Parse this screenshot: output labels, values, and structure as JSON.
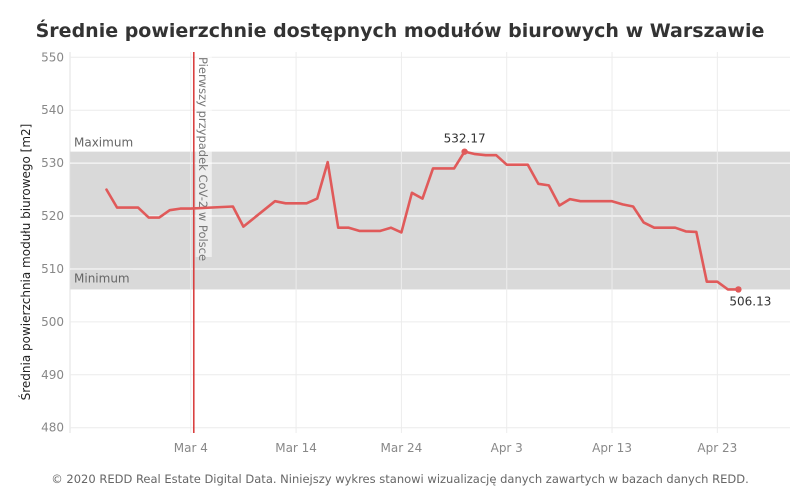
{
  "chart_data": {
    "type": "line",
    "title": "Średnie powierzchnie dostępnych modułów biurowych w Warszawie",
    "xlabel": "",
    "ylabel": "Średnia powierzchnia modułu biurowego [m2]",
    "x_tick_labels": [
      "Mar 4",
      "Mar 14",
      "Mar 24",
      "Apr 3",
      "Apr 13",
      "Apr 23"
    ],
    "y_ticks": [
      480,
      490,
      500,
      510,
      520,
      530,
      540,
      550
    ],
    "ylim": [
      479,
      551
    ],
    "grid": true,
    "band": {
      "min": 506.13,
      "max": 532.17,
      "min_label": "Minimum",
      "max_label": "Maximum"
    },
    "event": {
      "date": "2020-03-04",
      "label": "Pierwszy przypadek CoV-2 w Polsce"
    },
    "series": [
      {
        "color": "#e05a5a",
        "points": [
          [
            "2020-02-25",
            525.0
          ],
          [
            "2020-02-26",
            521.6
          ],
          [
            "2020-02-27",
            521.6
          ],
          [
            "2020-02-28",
            521.6
          ],
          [
            "2020-02-29",
            519.7
          ],
          [
            "2020-03-01",
            519.7
          ],
          [
            "2020-03-02",
            521.1
          ],
          [
            "2020-03-03",
            521.4
          ],
          [
            "2020-03-04",
            521.4
          ],
          [
            "2020-03-07",
            521.7
          ],
          [
            "2020-03-08",
            521.8
          ],
          [
            "2020-03-09",
            518.0
          ],
          [
            "2020-03-12",
            522.8
          ],
          [
            "2020-03-13",
            522.4
          ],
          [
            "2020-03-15",
            522.4
          ],
          [
            "2020-03-16",
            523.3
          ],
          [
            "2020-03-17",
            530.2
          ],
          [
            "2020-03-18",
            517.8
          ],
          [
            "2020-03-19",
            517.8
          ],
          [
            "2020-03-20",
            517.2
          ],
          [
            "2020-03-22",
            517.2
          ],
          [
            "2020-03-23",
            517.8
          ],
          [
            "2020-03-24",
            516.9
          ],
          [
            "2020-03-25",
            524.4
          ],
          [
            "2020-03-26",
            523.3
          ],
          [
            "2020-03-27",
            529.0
          ],
          [
            "2020-03-29",
            529.0
          ],
          [
            "2020-03-30",
            532.17
          ],
          [
            "2020-03-31",
            531.7
          ],
          [
            "2020-04-01",
            531.5
          ],
          [
            "2020-04-02",
            531.5
          ],
          [
            "2020-04-03",
            529.7
          ],
          [
            "2020-04-05",
            529.7
          ],
          [
            "2020-04-06",
            526.1
          ],
          [
            "2020-04-07",
            525.8
          ],
          [
            "2020-04-08",
            522.0
          ],
          [
            "2020-04-09",
            523.2
          ],
          [
            "2020-04-10",
            522.8
          ],
          [
            "2020-04-13",
            522.8
          ],
          [
            "2020-04-14",
            522.2
          ],
          [
            "2020-04-15",
            521.8
          ],
          [
            "2020-04-16",
            518.8
          ],
          [
            "2020-04-17",
            517.8
          ],
          [
            "2020-04-19",
            517.8
          ],
          [
            "2020-04-20",
            517.1
          ],
          [
            "2020-04-21",
            517.0
          ],
          [
            "2020-04-22",
            507.6
          ],
          [
            "2020-04-23",
            507.6
          ],
          [
            "2020-04-24",
            506.13
          ],
          [
            "2020-04-25",
            506.13
          ]
        ]
      }
    ],
    "annotations": [
      {
        "date": "2020-03-30",
        "value": 532.17,
        "text": "532.17"
      },
      {
        "date": "2020-04-25",
        "value": 506.13,
        "text": "506.13"
      }
    ]
  },
  "footer": "© 2020 REDD Real Estate Digital Data. Niniejszy wykres stanowi wizualizację danych zawartych w bazach danych REDD."
}
